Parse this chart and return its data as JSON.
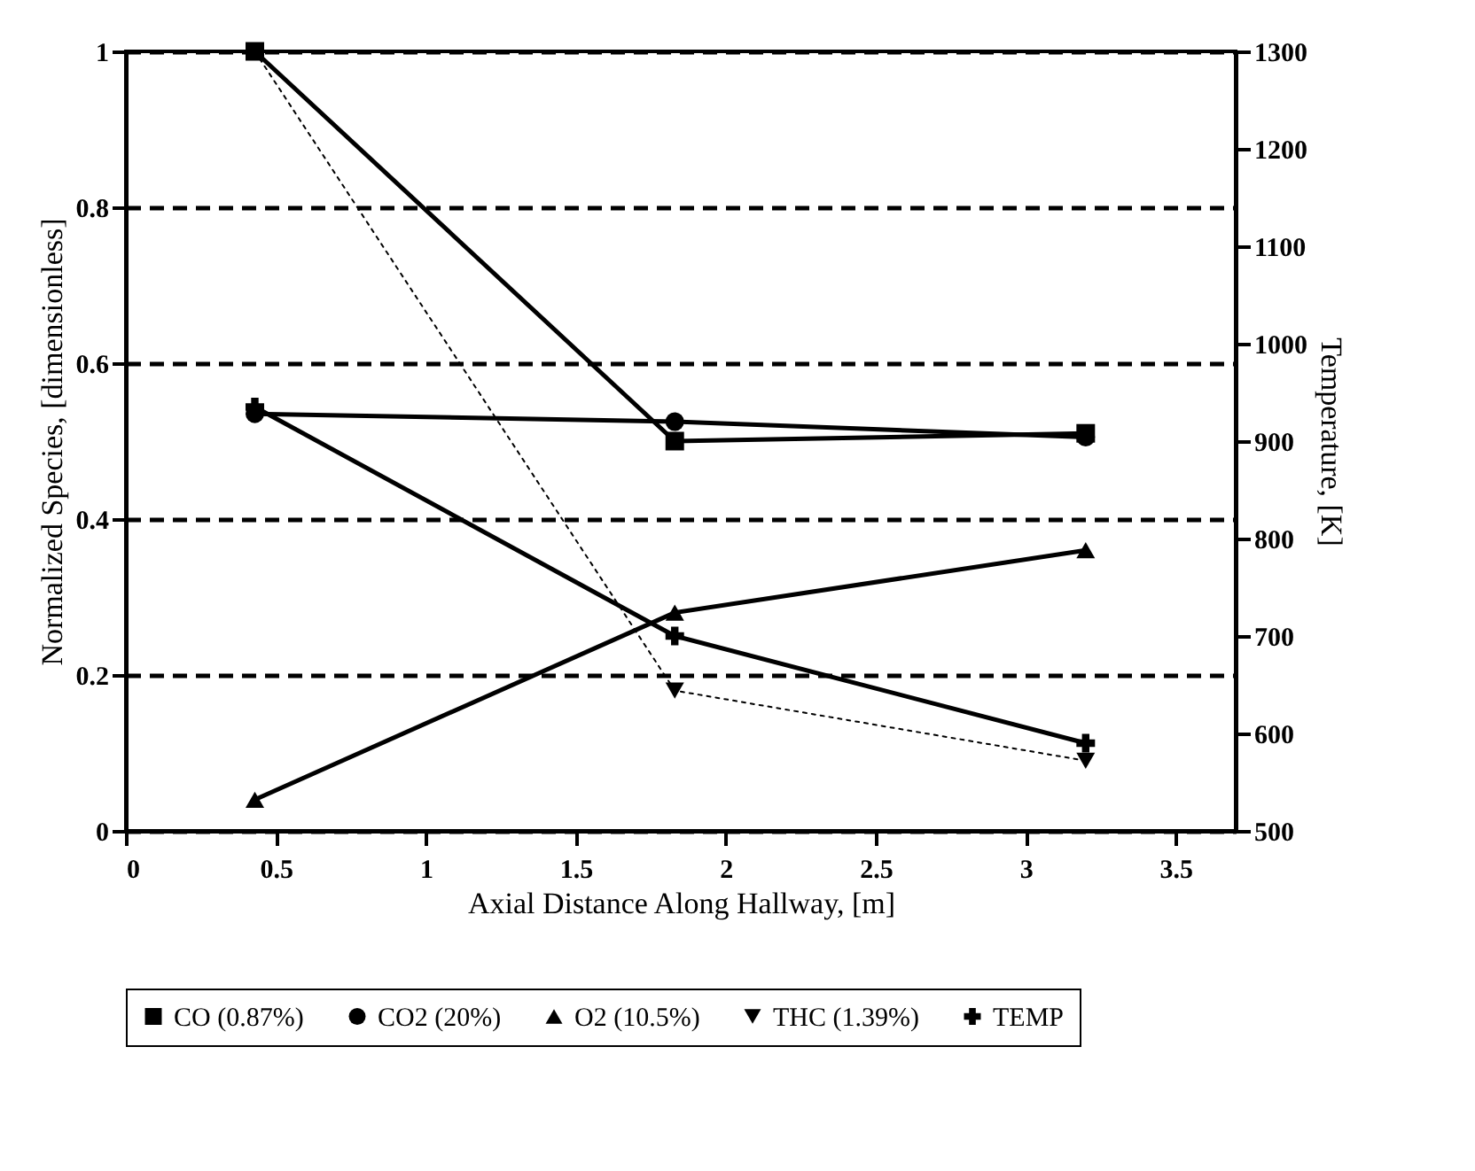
{
  "chart_data": {
    "type": "line",
    "xlabel": "Axial Distance Along Hallway, [m]",
    "ylabel": "Normalized Species, [dimensionless]",
    "y2label": "Temperature, [K]",
    "x": [
      0.43,
      1.83,
      3.2
    ],
    "series": [
      {
        "name": "CO (0.87%)",
        "color": "#000000",
        "marker": "square",
        "line_style": "solid",
        "values": [
          1.0,
          0.5,
          0.51
        ]
      },
      {
        "name": "CO2 (20%)",
        "color": "#000000",
        "marker": "circle",
        "line_style": "solid",
        "values": [
          0.535,
          0.525,
          0.505
        ]
      },
      {
        "name": "O2 (10.5%)",
        "color": "#000000",
        "marker": "triangle",
        "line_style": "solid",
        "values": [
          0.04,
          0.28,
          0.36
        ]
      },
      {
        "name": "THC (1.39%)",
        "color": "#000000",
        "marker": "triangle-down",
        "line_style": "dotted",
        "values": [
          1.0,
          0.18,
          0.09
        ]
      },
      {
        "name": "TEMP",
        "color": "#000000",
        "marker": "cross",
        "line_style": "solid",
        "axis": "y2",
        "values": [
          935,
          700,
          590
        ]
      }
    ],
    "xlim": [
      0,
      3.7
    ],
    "xticks": [
      0,
      0.5,
      1,
      1.5,
      2,
      2.5,
      3,
      3.5
    ],
    "ylim": [
      0,
      1
    ],
    "yticks": [
      0,
      0.2,
      0.4,
      0.6,
      0.8,
      1
    ],
    "y2lim": [
      500,
      1300
    ],
    "y2ticks": [
      500,
      600,
      700,
      800,
      900,
      1000,
      1100,
      1200,
      1300
    ],
    "grid": "y",
    "legend": "bottom"
  }
}
